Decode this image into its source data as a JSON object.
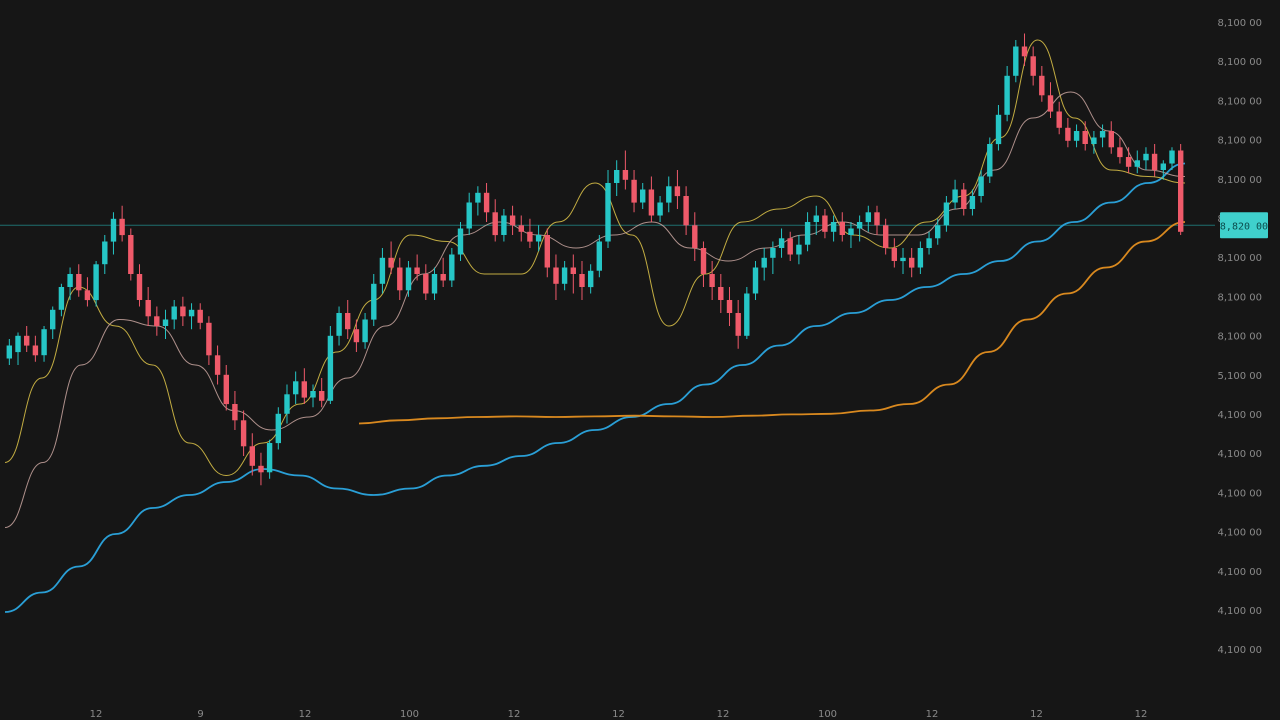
{
  "chart_data": {
    "type": "candlestick",
    "title": "",
    "xlabel": "",
    "ylabel": "",
    "grid": false,
    "ylim": [
      0,
      1000
    ],
    "colors": {
      "background": "#161616",
      "up": "#26c6c6",
      "down": "#ef5a6a",
      "price_line": "#1f6f6f",
      "price_tag": "#3fd0cc",
      "axis_text": "#8a8a8a"
    },
    "y_tick_labels": [
      "8,100 00",
      "8,100 00",
      "8,100 00",
      "8,100 00",
      "8,100 00",
      "8,100 00",
      "8,100 00",
      "8,100 00",
      "8,100 00",
      "5,100 00",
      "4,100 00",
      "4,100 00",
      "4,100 00",
      "4,100 00",
      "4,100 00",
      "4,100 00",
      "4,100 00"
    ],
    "x_tick_labels": [
      "12",
      "9",
      "12",
      "100",
      "12",
      "12",
      "12",
      "100",
      "12",
      "12",
      "12"
    ],
    "current_price_label": "8,820 00",
    "current_price_value": 715,
    "candles": [
      [
        0,
        510,
        540,
        500,
        530
      ],
      [
        1,
        520,
        550,
        500,
        545
      ],
      [
        2,
        545,
        560,
        520,
        530
      ],
      [
        3,
        530,
        545,
        505,
        515
      ],
      [
        4,
        515,
        560,
        505,
        555
      ],
      [
        5,
        555,
        590,
        540,
        585
      ],
      [
        6,
        585,
        625,
        575,
        620
      ],
      [
        7,
        620,
        650,
        600,
        640
      ],
      [
        8,
        640,
        655,
        605,
        615
      ],
      [
        9,
        615,
        635,
        590,
        600
      ],
      [
        10,
        600,
        660,
        590,
        655
      ],
      [
        11,
        655,
        700,
        640,
        690
      ],
      [
        12,
        690,
        735,
        670,
        725
      ],
      [
        13,
        725,
        745,
        690,
        700
      ],
      [
        14,
        700,
        710,
        630,
        640
      ],
      [
        15,
        640,
        655,
        590,
        600
      ],
      [
        16,
        600,
        620,
        560,
        575
      ],
      [
        17,
        575,
        590,
        545,
        560
      ],
      [
        18,
        560,
        585,
        540,
        570
      ],
      [
        19,
        570,
        600,
        555,
        590
      ],
      [
        20,
        590,
        605,
        560,
        575
      ],
      [
        21,
        575,
        595,
        555,
        585
      ],
      [
        22,
        585,
        595,
        555,
        565
      ],
      [
        23,
        565,
        575,
        500,
        515
      ],
      [
        24,
        515,
        530,
        470,
        485
      ],
      [
        25,
        485,
        500,
        430,
        440
      ],
      [
        26,
        440,
        460,
        400,
        415
      ],
      [
        27,
        415,
        430,
        360,
        375
      ],
      [
        28,
        375,
        395,
        330,
        345
      ],
      [
        29,
        345,
        365,
        315,
        335
      ],
      [
        30,
        335,
        385,
        325,
        380
      ],
      [
        31,
        380,
        435,
        370,
        425
      ],
      [
        32,
        425,
        470,
        410,
        455
      ],
      [
        33,
        455,
        490,
        440,
        475
      ],
      [
        34,
        475,
        495,
        440,
        450
      ],
      [
        35,
        450,
        470,
        435,
        460
      ],
      [
        36,
        460,
        480,
        435,
        445
      ],
      [
        37,
        445,
        560,
        440,
        545
      ],
      [
        38,
        545,
        590,
        530,
        580
      ],
      [
        39,
        580,
        600,
        540,
        555
      ],
      [
        40,
        555,
        570,
        520,
        535
      ],
      [
        41,
        535,
        580,
        525,
        570
      ],
      [
        42,
        570,
        640,
        560,
        625
      ],
      [
        43,
        625,
        680,
        610,
        665
      ],
      [
        44,
        665,
        690,
        640,
        650
      ],
      [
        45,
        650,
        665,
        600,
        615
      ],
      [
        46,
        615,
        660,
        605,
        650
      ],
      [
        47,
        650,
        670,
        630,
        640
      ],
      [
        48,
        640,
        655,
        600,
        610
      ],
      [
        49,
        610,
        650,
        600,
        640
      ],
      [
        50,
        640,
        665,
        620,
        630
      ],
      [
        51,
        630,
        680,
        620,
        670
      ],
      [
        52,
        670,
        720,
        660,
        710
      ],
      [
        53,
        710,
        765,
        700,
        750
      ],
      [
        54,
        750,
        775,
        730,
        765
      ],
      [
        55,
        765,
        780,
        720,
        735
      ],
      [
        56,
        735,
        755,
        690,
        700
      ],
      [
        57,
        700,
        740,
        690,
        730
      ],
      [
        58,
        730,
        745,
        700,
        715
      ],
      [
        59,
        715,
        730,
        690,
        705
      ],
      [
        60,
        705,
        725,
        680,
        690
      ],
      [
        61,
        690,
        715,
        675,
        700
      ],
      [
        62,
        700,
        710,
        635,
        650
      ],
      [
        63,
        650,
        670,
        600,
        625
      ],
      [
        64,
        625,
        660,
        615,
        650
      ],
      [
        65,
        650,
        670,
        610,
        640
      ],
      [
        66,
        640,
        660,
        600,
        620
      ],
      [
        67,
        620,
        655,
        610,
        645
      ],
      [
        68,
        645,
        700,
        635,
        690
      ],
      [
        69,
        690,
        800,
        680,
        780
      ],
      [
        70,
        780,
        815,
        760,
        800
      ],
      [
        71,
        800,
        830,
        770,
        785
      ],
      [
        72,
        785,
        800,
        735,
        750
      ],
      [
        73,
        750,
        780,
        740,
        770
      ],
      [
        74,
        770,
        790,
        720,
        730
      ],
      [
        75,
        730,
        760,
        720,
        750
      ],
      [
        76,
        750,
        790,
        735,
        775
      ],
      [
        77,
        775,
        800,
        740,
        760
      ],
      [
        78,
        760,
        775,
        700,
        715
      ],
      [
        79,
        715,
        735,
        660,
        680
      ],
      [
        80,
        680,
        690,
        620,
        640
      ],
      [
        81,
        640,
        660,
        600,
        620
      ],
      [
        82,
        620,
        640,
        580,
        600
      ],
      [
        83,
        600,
        620,
        560,
        580
      ],
      [
        84,
        580,
        600,
        525,
        545
      ],
      [
        85,
        545,
        620,
        540,
        610
      ],
      [
        86,
        610,
        660,
        600,
        650
      ],
      [
        87,
        650,
        680,
        630,
        665
      ],
      [
        88,
        665,
        690,
        640,
        680
      ],
      [
        89,
        680,
        710,
        665,
        695
      ],
      [
        90,
        695,
        705,
        660,
        670
      ],
      [
        91,
        670,
        700,
        655,
        685
      ],
      [
        92,
        685,
        735,
        675,
        720
      ],
      [
        93,
        720,
        745,
        700,
        730
      ],
      [
        94,
        730,
        740,
        695,
        705
      ],
      [
        95,
        705,
        730,
        690,
        720
      ],
      [
        96,
        720,
        735,
        690,
        700
      ],
      [
        97,
        700,
        720,
        680,
        710
      ],
      [
        98,
        710,
        730,
        690,
        720
      ],
      [
        99,
        720,
        745,
        705,
        735
      ],
      [
        100,
        735,
        745,
        700,
        715
      ],
      [
        101,
        715,
        725,
        670,
        680
      ],
      [
        102,
        680,
        695,
        650,
        660
      ],
      [
        103,
        660,
        680,
        640,
        665
      ],
      [
        104,
        665,
        680,
        635,
        650
      ],
      [
        105,
        650,
        690,
        640,
        680
      ],
      [
        106,
        680,
        705,
        670,
        695
      ],
      [
        107,
        695,
        725,
        685,
        715
      ],
      [
        108,
        715,
        760,
        705,
        750
      ],
      [
        109,
        750,
        785,
        740,
        770
      ],
      [
        110,
        770,
        780,
        730,
        740
      ],
      [
        111,
        740,
        770,
        730,
        760
      ],
      [
        112,
        760,
        800,
        750,
        790
      ],
      [
        113,
        790,
        850,
        780,
        840
      ],
      [
        114,
        840,
        900,
        830,
        885
      ],
      [
        115,
        885,
        960,
        875,
        945
      ],
      [
        116,
        945,
        1000,
        935,
        990
      ],
      [
        117,
        990,
        1010,
        960,
        975
      ],
      [
        118,
        975,
        990,
        930,
        945
      ],
      [
        119,
        945,
        960,
        905,
        915
      ],
      [
        120,
        915,
        935,
        880,
        890
      ],
      [
        121,
        890,
        905,
        855,
        865
      ],
      [
        122,
        865,
        880,
        835,
        845
      ],
      [
        123,
        845,
        870,
        835,
        860
      ],
      [
        124,
        860,
        875,
        830,
        840
      ],
      [
        125,
        840,
        860,
        825,
        850
      ],
      [
        126,
        850,
        870,
        835,
        860
      ],
      [
        127,
        860,
        875,
        825,
        835
      ],
      [
        128,
        835,
        850,
        810,
        820
      ],
      [
        129,
        820,
        835,
        795,
        805
      ],
      [
        130,
        805,
        830,
        795,
        815
      ],
      [
        131,
        815,
        835,
        800,
        825
      ],
      [
        132,
        825,
        840,
        790,
        800
      ],
      [
        133,
        800,
        815,
        785,
        810
      ],
      [
        134,
        810,
        835,
        800,
        830
      ],
      [
        135,
        830,
        840,
        700,
        705
      ]
    ],
    "series": [
      {
        "color": "#2a9fd6",
        "values": [
          120,
          150,
          190,
          240,
          280,
          300,
          320,
          340,
          330,
          310,
          300,
          310,
          330,
          345,
          360,
          380,
          400,
          420,
          440,
          470,
          500,
          530,
          560,
          580,
          600,
          620,
          640,
          660,
          690,
          720,
          750,
          780,
          810
        ]
      },
      {
        "color": "#d9891f",
        "values": [
          null,
          null,
          null,
          null,
          null,
          null,
          null,
          null,
          null,
          410,
          415,
          418,
          420,
          421,
          420,
          421,
          422,
          421,
          420,
          422,
          424,
          425,
          430,
          440,
          470,
          520,
          570,
          610,
          650,
          690,
          720
        ]
      },
      {
        "color": "#e0c74a",
        "values": [
          350,
          480,
          620,
          560,
          500,
          380,
          330,
          380,
          440,
          520,
          600,
          700,
          690,
          640,
          640,
          720,
          780,
          700,
          560,
          640,
          720,
          740,
          760,
          700,
          680,
          720,
          760,
          850,
          1000,
          880,
          800,
          790,
          780
        ]
      },
      {
        "color": "#c9a6a0",
        "values": [
          250,
          350,
          500,
          570,
          560,
          500,
          430,
          400,
          420,
          480,
          560,
          640,
          700,
          720,
          700,
          680,
          700,
          720,
          680,
          660,
          680,
          700,
          720,
          700,
          700,
          740,
          800,
          880,
          920,
          860,
          800,
          790
        ]
      }
    ]
  }
}
